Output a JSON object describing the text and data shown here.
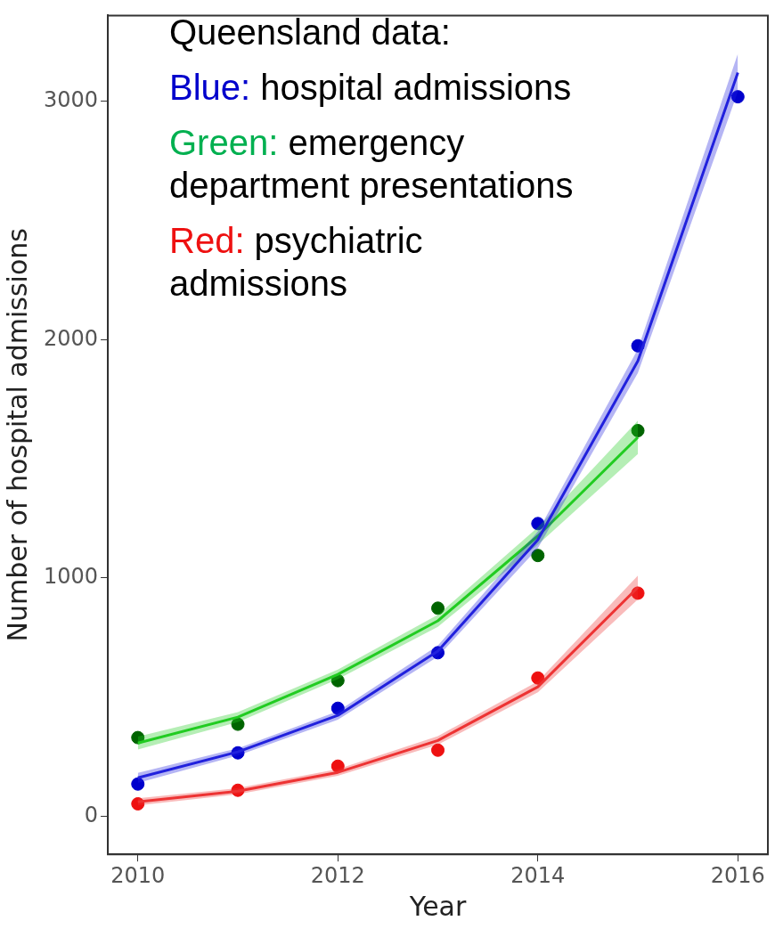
{
  "chart_data": {
    "type": "scatter",
    "xlabel": "Year",
    "ylabel": "Number of hospital admissions",
    "annotations": [
      "Queensland data:",
      "Blue: hospital admissions",
      "Green: emergency department presentations",
      "Red: psychiatric admissions"
    ],
    "xlim": [
      2009.7,
      2016.3
    ],
    "xticks": [
      2010,
      2012,
      2014,
      2016
    ],
    "ylim": [
      -160,
      3360
    ],
    "yticks": [
      0,
      1000,
      2000,
      3000
    ],
    "grid": false,
    "legend": false,
    "marker": "circle",
    "series": [
      {
        "type": "line",
        "marker": "none",
        "color": "#2222dd",
        "x": [
          2010,
          2011,
          2012,
          2013,
          2014,
          2015,
          2016
        ],
        "values": [
          161,
          270,
          423,
          693,
          1160,
          1910,
          3120
        ],
        "lower": [
          140,
          255,
          405,
          670,
          1125,
          1860,
          3040
        ],
        "upper": [
          182,
          285,
          441,
          716,
          1195,
          1960,
          3200
        ]
      },
      {
        "type": "line",
        "marker": "none",
        "color": "#22cc22",
        "x": [
          2010,
          2011,
          2012,
          2013,
          2014,
          2015
        ],
        "values": [
          307,
          416,
          595,
          820,
          1176,
          1590
        ],
        "lower": [
          280,
          395,
          575,
          795,
          1140,
          1520
        ],
        "upper": [
          334,
          437,
          615,
          845,
          1212,
          1660
        ]
      },
      {
        "type": "line",
        "marker": "none",
        "color": "#ee3333",
        "x": [
          2010,
          2011,
          2012,
          2013,
          2014,
          2015
        ],
        "values": [
          60,
          105,
          184,
          318,
          543,
          960
        ],
        "lower": [
          45,
          92,
          170,
          300,
          520,
          910
        ],
        "upper": [
          75,
          118,
          198,
          336,
          566,
          1010
        ]
      },
      {
        "color": "#0000cc",
        "x": [
          2010,
          2011,
          2012,
          2013,
          2014,
          2015,
          2016
        ],
        "values": [
          135,
          266,
          453,
          686,
          1228,
          1974,
          3019
        ]
      },
      {
        "color": "#006400",
        "x": [
          2010,
          2011,
          2012,
          2013,
          2014,
          2015
        ],
        "values": [
          330,
          386,
          569,
          873,
          1094,
          1618
        ]
      },
      {
        "color": "#ee1111",
        "x": [
          2010,
          2011,
          2012,
          2013,
          2014,
          2015
        ],
        "values": [
          52,
          109,
          210,
          277,
          580,
          936
        ]
      }
    ]
  }
}
